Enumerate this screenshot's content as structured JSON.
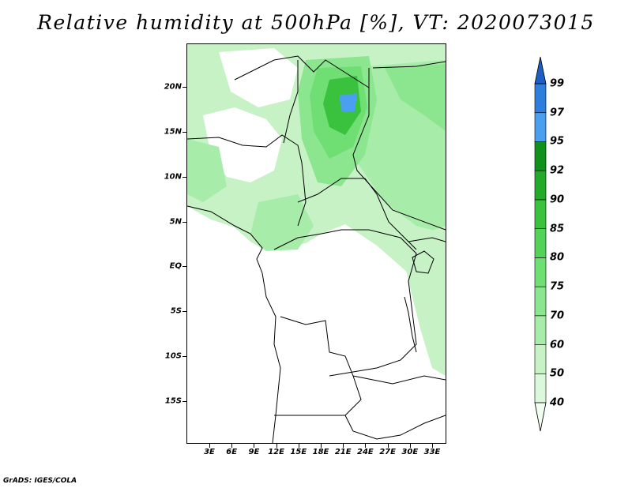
{
  "title": "Relative humidity at 500hPa [%], VT: 2020073015",
  "credit": "GrADS: IGES/COLA",
  "map": {
    "lat_labels": [
      "20N",
      "15N",
      "10N",
      "5N",
      "EQ",
      "5S",
      "10S",
      "15S"
    ],
    "lon_labels": [
      "3E",
      "6E",
      "9E",
      "12E",
      "15E",
      "18E",
      "21E",
      "24E",
      "27E",
      "30E",
      "33E"
    ]
  },
  "colorbar": {
    "levels": [
      "40",
      "50",
      "60",
      "70",
      "75",
      "80",
      "85",
      "90",
      "92",
      "95",
      "97",
      "99"
    ],
    "colors": [
      "#f0fdf0",
      "#dcf8dc",
      "#c6f2c6",
      "#a8ecaa",
      "#8ce68f",
      "#6fde73",
      "#52d258",
      "#3ac23f",
      "#22ab28",
      "#10911a",
      "#4a9ff0",
      "#2e7ede",
      "#1b5fc4"
    ]
  }
}
